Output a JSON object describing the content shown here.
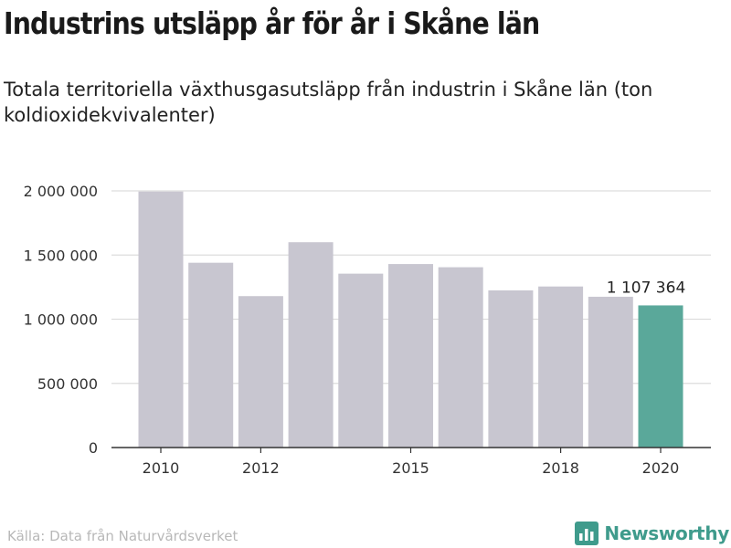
{
  "header": {
    "title": "Industrins utsläpp år för år i Skåne län",
    "subtitle": "Totala territoriella växthusgasutsläpp från industrin i Skåne län (ton koldioxidekvivalenter)"
  },
  "footer": {
    "source": "Källa: Data från Naturvårdsverket",
    "brand": "Newsworthy",
    "brand_icon": "bar-chart-icon",
    "brand_color": "#3f9b8c"
  },
  "chart_data": {
    "type": "bar",
    "categories": [
      "2010",
      "2011",
      "2012",
      "2013",
      "2014",
      "2015",
      "2016",
      "2017",
      "2018",
      "2019",
      "2020"
    ],
    "values": [
      1995000,
      1440000,
      1180000,
      1600000,
      1355000,
      1430000,
      1405000,
      1225000,
      1255000,
      1175000,
      1107364
    ],
    "x_tick_labels": [
      "2010",
      "2012",
      "2015",
      "2018",
      "2020"
    ],
    "y_ticks": [
      0,
      500000,
      1000000,
      1500000,
      2000000
    ],
    "y_tick_labels": [
      "0",
      "500 000",
      "1 000 000",
      "1 500 000",
      "2 000 000"
    ],
    "ylim": [
      0,
      2000000
    ],
    "grid": true,
    "highlight_index": 10,
    "highlight_label": "1 107 364",
    "colors": {
      "bar": "#c8c6d0",
      "highlight": "#5aa89a",
      "grid": "#dddddd",
      "axis": "#333333"
    }
  }
}
